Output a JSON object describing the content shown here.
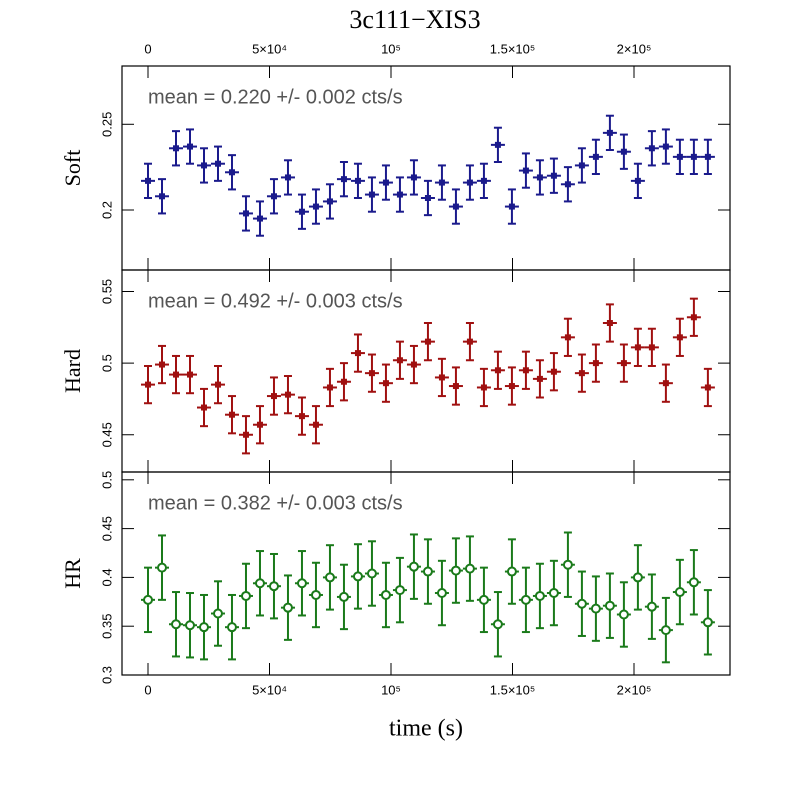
{
  "chart_data": {
    "type": "errorbar",
    "title": "3c111−XIS3",
    "xlabel": "time (s)",
    "xlim": [
      -10700,
      239500
    ],
    "xticks": [
      0,
      {
        "value": 50000,
        "label": "5×10⁴"
      },
      {
        "value": 100000,
        "label": "10⁵"
      },
      {
        "value": 150000,
        "label": "1.5×10⁵"
      },
      {
        "value": 200000,
        "label": "2×10⁵"
      }
    ],
    "x": [
      0,
      5760,
      11520,
      17280,
      23040,
      28800,
      34560,
      40320,
      46080,
      51840,
      57600,
      63360,
      69120,
      74880,
      80640,
      86400,
      92160,
      97920,
      103680,
      109440,
      115200,
      120960,
      126720,
      132480,
      138240,
      144000,
      149760,
      155520,
      161280,
      167040,
      172800,
      178560,
      184320,
      190080,
      195840,
      201600,
      207360,
      213120,
      218880,
      224640,
      230400
    ],
    "xerr": 2880,
    "panels": [
      {
        "ylabel": "Soft",
        "annotation": "mean = 0.220 +/- 0.002 cts/s",
        "ylim": [
          0.165,
          0.284
        ],
        "yticks": [
          0.2,
          0.25
        ],
        "color": "#1a1a8c",
        "marker": "square",
        "values": [
          0.217,
          0.208,
          0.236,
          0.237,
          0.226,
          0.227,
          0.222,
          0.198,
          0.195,
          0.208,
          0.219,
          0.199,
          0.202,
          0.205,
          0.218,
          0.217,
          0.209,
          0.216,
          0.209,
          0.219,
          0.207,
          0.216,
          0.202,
          0.216,
          0.217,
          0.238,
          0.202,
          0.223,
          0.219,
          0.22,
          0.215,
          0.226,
          0.231,
          0.245,
          0.234,
          0.217,
          0.236,
          0.237,
          0.231,
          0.231,
          0.231
        ],
        "errors": [
          0.01,
          0.01,
          0.01,
          0.01,
          0.01,
          0.01,
          0.01,
          0.01,
          0.01,
          0.01,
          0.01,
          0.01,
          0.01,
          0.01,
          0.01,
          0.01,
          0.01,
          0.01,
          0.01,
          0.01,
          0.01,
          0.01,
          0.01,
          0.01,
          0.01,
          0.01,
          0.01,
          0.01,
          0.01,
          0.01,
          0.01,
          0.01,
          0.01,
          0.01,
          0.01,
          0.01,
          0.01,
          0.01,
          0.01,
          0.01,
          0.01
        ]
      },
      {
        "ylabel": "Hard",
        "annotation": "mean = 0.492 +/- 0.003 cts/s",
        "ylim": [
          0.424,
          0.565
        ],
        "yticks": [
          0.45,
          0.5,
          0.55
        ],
        "color": "#a01010",
        "marker": "square",
        "values": [
          0.485,
          0.499,
          0.492,
          0.492,
          0.469,
          0.485,
          0.464,
          0.45,
          0.457,
          0.477,
          0.478,
          0.463,
          0.457,
          0.483,
          0.487,
          0.507,
          0.493,
          0.486,
          0.502,
          0.499,
          0.515,
          0.49,
          0.484,
          0.515,
          0.483,
          0.495,
          0.484,
          0.495,
          0.489,
          0.494,
          0.518,
          0.493,
          0.5,
          0.528,
          0.5,
          0.511,
          0.511,
          0.486,
          0.518,
          0.532,
          0.483
        ],
        "errors": [
          0.013,
          0.013,
          0.013,
          0.013,
          0.013,
          0.013,
          0.013,
          0.013,
          0.013,
          0.013,
          0.013,
          0.013,
          0.013,
          0.013,
          0.013,
          0.013,
          0.013,
          0.013,
          0.013,
          0.013,
          0.013,
          0.013,
          0.013,
          0.013,
          0.013,
          0.013,
          0.013,
          0.013,
          0.013,
          0.013,
          0.013,
          0.013,
          0.013,
          0.013,
          0.013,
          0.013,
          0.013,
          0.013,
          0.013,
          0.013,
          0.013
        ]
      },
      {
        "ylabel": "HR",
        "annotation": "mean = 0.382 +/- 0.003 cts/s",
        "ylim": [
          0.3,
          0.508
        ],
        "yticks": [
          0.3,
          0.35,
          0.4,
          0.45,
          0.5
        ],
        "color": "#1a7a1a",
        "marker": "circle",
        "values": [
          0.377,
          0.41,
          0.352,
          0.351,
          0.349,
          0.363,
          0.349,
          0.381,
          0.394,
          0.391,
          0.369,
          0.394,
          0.382,
          0.4,
          0.38,
          0.401,
          0.404,
          0.382,
          0.387,
          0.411,
          0.406,
          0.384,
          0.407,
          0.409,
          0.377,
          0.352,
          0.406,
          0.377,
          0.381,
          0.384,
          0.413,
          0.373,
          0.368,
          0.371,
          0.362,
          0.4,
          0.37,
          0.346,
          0.385,
          0.395,
          0.354
        ],
        "errors": [
          0.033,
          0.033,
          0.033,
          0.033,
          0.033,
          0.033,
          0.033,
          0.033,
          0.033,
          0.033,
          0.033,
          0.033,
          0.033,
          0.033,
          0.033,
          0.033,
          0.033,
          0.033,
          0.033,
          0.033,
          0.033,
          0.033,
          0.033,
          0.033,
          0.033,
          0.033,
          0.033,
          0.033,
          0.033,
          0.033,
          0.033,
          0.033,
          0.033,
          0.033,
          0.033,
          0.033,
          0.033,
          0.033,
          0.033,
          0.033,
          0.033
        ]
      }
    ]
  }
}
